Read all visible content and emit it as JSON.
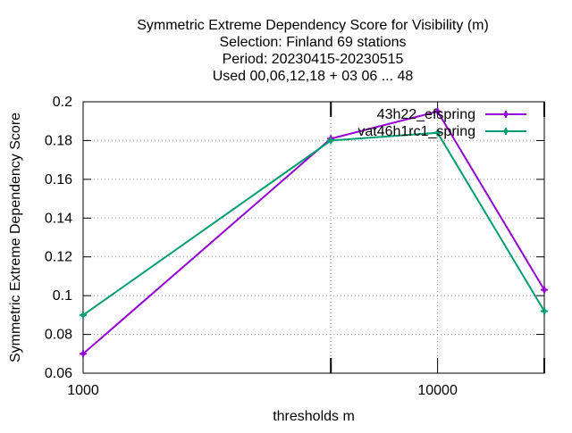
{
  "chart_data": {
    "type": "line",
    "title_lines": [
      "Symmetric Extreme Dependency Score  for Visibility (m)",
      "Selection: Finland     69 stations",
      "Period: 20230415-20230515",
      "Used  00,06,12,18  + 03 06 ... 48"
    ],
    "xlabel": "thresholds m",
    "ylabel": "Symmetric Extreme Dependency Score",
    "x_scale": "log",
    "xlim": [
      1000,
      20000
    ],
    "ylim": [
      0.06,
      0.2
    ],
    "x_ticks": [
      {
        "value": 1000,
        "label": "1000"
      },
      {
        "value": 10000,
        "label": "10000"
      }
    ],
    "x_minor_ticks": [
      5000,
      20000
    ],
    "y_ticks": [
      {
        "value": 0.06,
        "label": "0.06"
      },
      {
        "value": 0.08,
        "label": "0.08"
      },
      {
        "value": 0.1,
        "label": "0.1"
      },
      {
        "value": 0.12,
        "label": "0.12"
      },
      {
        "value": 0.14,
        "label": "0.14"
      },
      {
        "value": 0.16,
        "label": "0.16"
      },
      {
        "value": 0.18,
        "label": "0.18"
      },
      {
        "value": 0.2,
        "label": "0.2"
      }
    ],
    "grid": true,
    "legend_position": "top-right",
    "series": [
      {
        "name": "43h22_efspring",
        "color": "#9400d3",
        "x": [
          1000,
          5000,
          10000,
          20000
        ],
        "y": [
          0.07,
          0.181,
          0.195,
          0.103
        ]
      },
      {
        "name": "vat46h1rc1_spring",
        "color": "#009e73",
        "x": [
          1000,
          5000,
          10000,
          20000
        ],
        "y": [
          0.09,
          0.18,
          0.184,
          0.092
        ]
      }
    ]
  }
}
